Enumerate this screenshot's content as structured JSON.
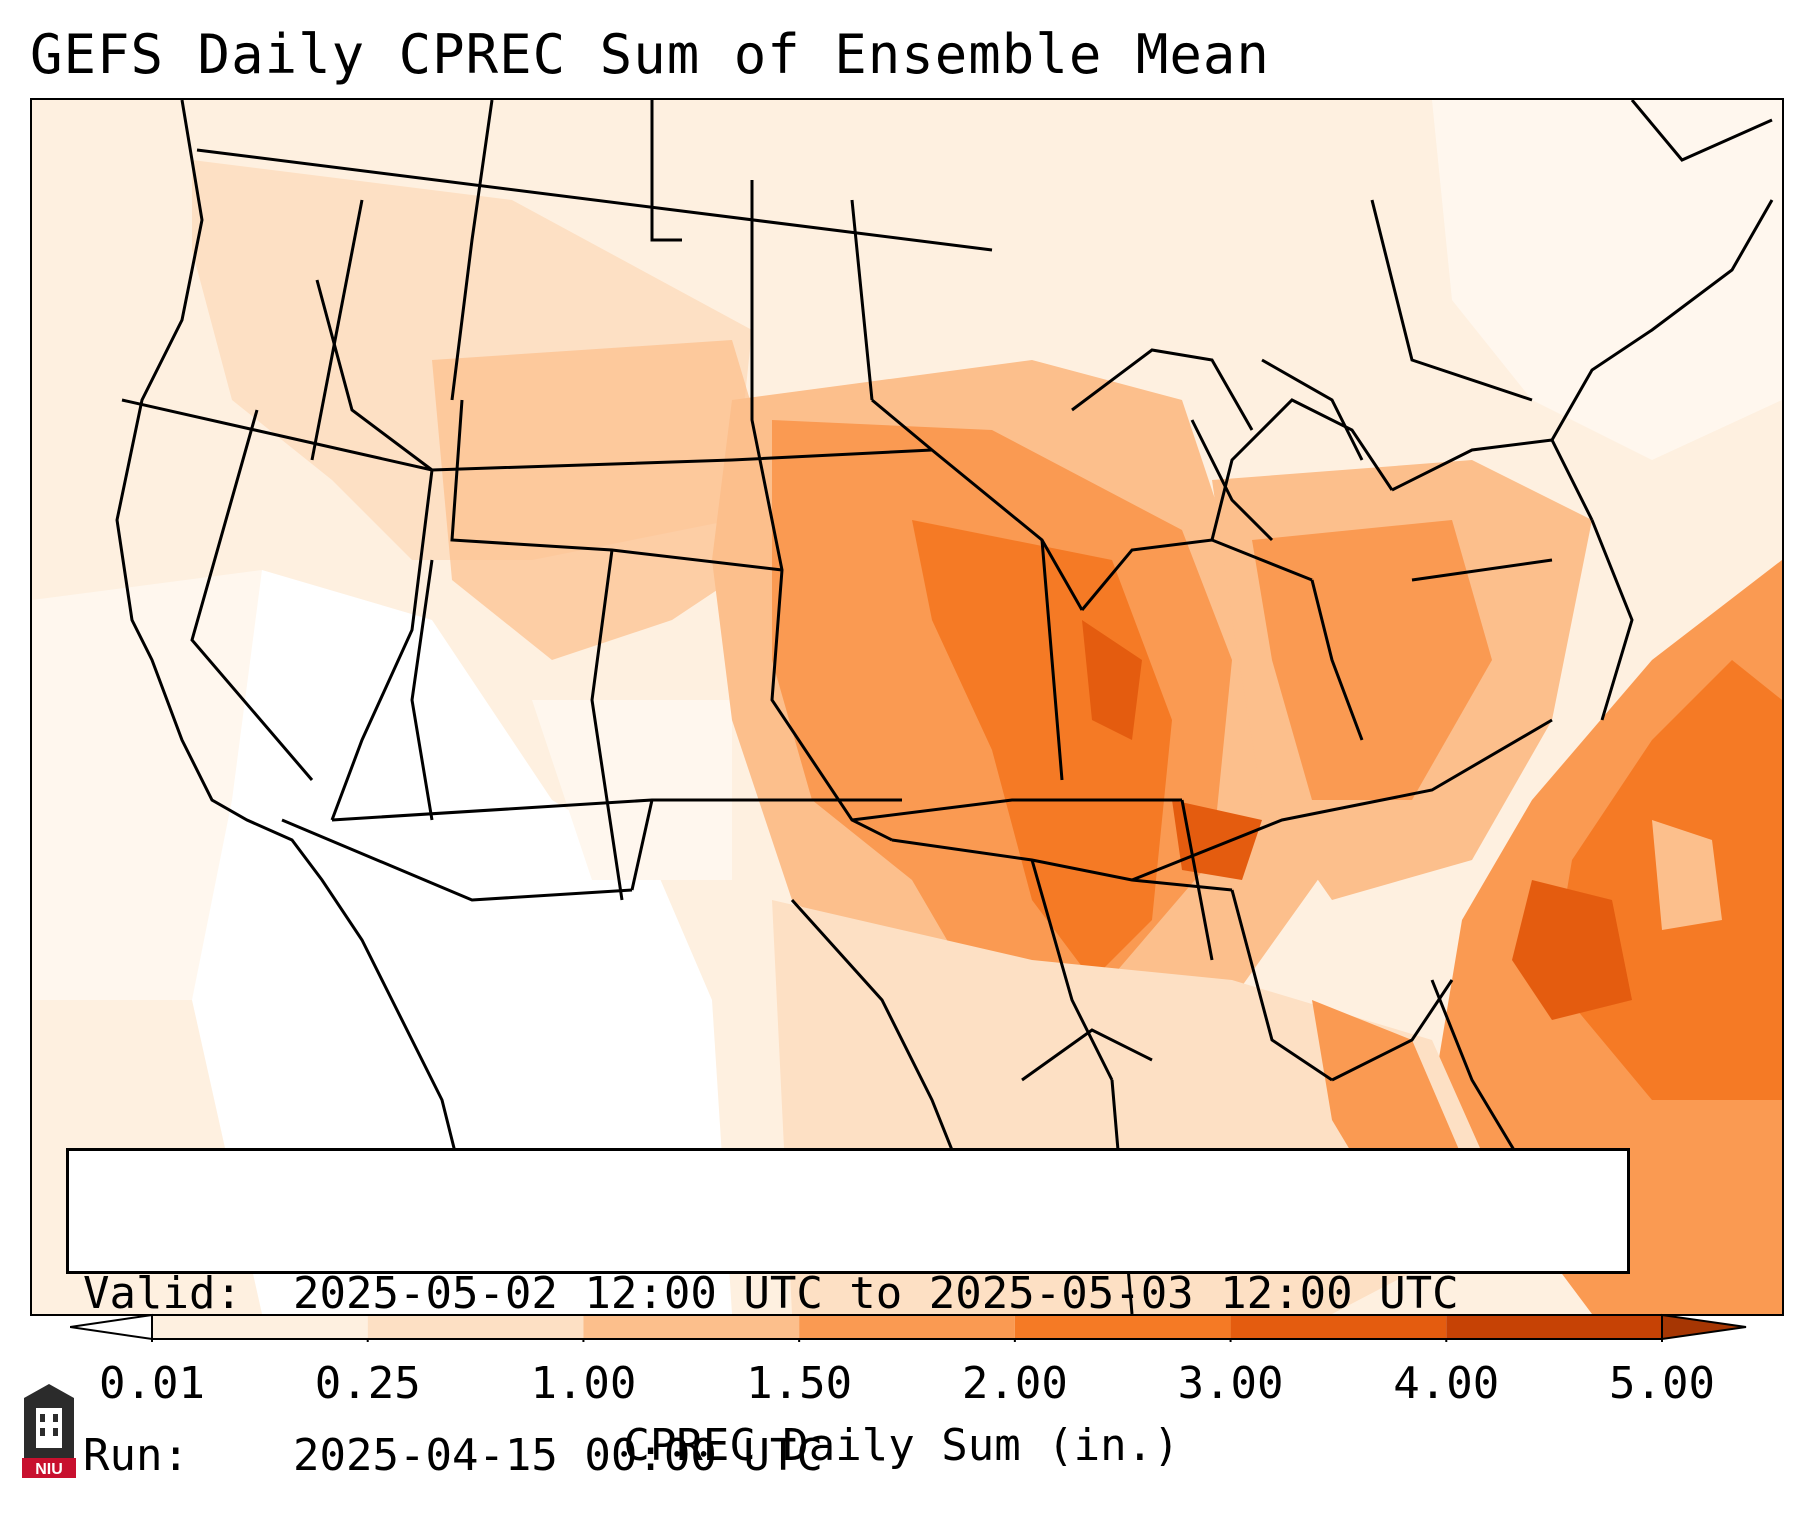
{
  "title": "GEFS Daily CPREC Sum of Ensemble Mean",
  "info": {
    "valid_key": "Valid:",
    "valid_value": "2025-05-02 12:00 UTC to 2025-05-03 12:00 UTC",
    "run_key": "Run:",
    "run_value": "2025-04-15 00:00 UTC"
  },
  "colorbar": {
    "label": "CPREC Daily Sum (in.)",
    "ticks": [
      "0.01",
      "0.25",
      "1.00",
      "1.50",
      "2.00",
      "3.00",
      "4.00",
      "5.00"
    ],
    "colors": [
      "#fef0e0",
      "#fde0c4",
      "#fcbf8c",
      "#fa9a52",
      "#f57a25",
      "#e45c0f",
      "#c64205"
    ],
    "under_color": "#ffffff",
    "over_color": "#a63603"
  },
  "logo": {
    "text": "NIU",
    "color": "#c8102e"
  },
  "colors": {
    "land_base": "#fef0e0",
    "outline": "#000000"
  }
}
